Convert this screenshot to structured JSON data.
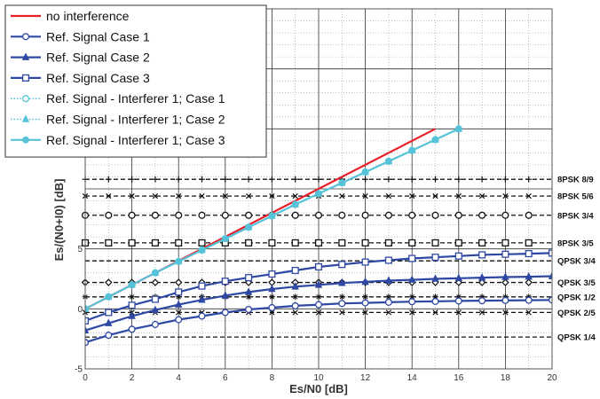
{
  "chart_data": {
    "type": "line",
    "xlabel": "Es/N0 [dB]",
    "ylabel": "Es/(N0+I0) [dB]",
    "xlim": [
      0,
      20
    ],
    "ylim": [
      -5,
      25
    ],
    "x_ticks": [
      0,
      2,
      4,
      6,
      8,
      10,
      12,
      14,
      16,
      18,
      20
    ],
    "y_ticks": [
      -5,
      0,
      5
    ],
    "grid": "major-solid, minor-dotted",
    "legend_position": "top-left",
    "series": [
      {
        "name": "no interference",
        "color": "#e8202a",
        "line": "solid",
        "marker": "none",
        "points": [
          [
            0,
            0
          ],
          [
            15,
            15
          ]
        ]
      },
      {
        "name": "Ref. Signal Case 1",
        "color": "#2e48a3",
        "line": "solid",
        "marker": "circle",
        "points": [
          [
            0,
            -2.8
          ],
          [
            1,
            -2.2
          ],
          [
            2,
            -1.7
          ],
          [
            3,
            -1.3
          ],
          [
            4,
            -0.9
          ],
          [
            5,
            -0.6
          ],
          [
            6,
            -0.3
          ],
          [
            7,
            -0.05
          ],
          [
            8,
            0.1
          ],
          [
            9,
            0.25
          ],
          [
            10,
            0.35
          ],
          [
            11,
            0.45
          ],
          [
            12,
            0.5
          ],
          [
            13,
            0.55
          ],
          [
            14,
            0.6
          ],
          [
            15,
            0.62
          ],
          [
            16,
            0.66
          ],
          [
            17,
            0.68
          ],
          [
            18,
            0.7
          ],
          [
            19,
            0.72
          ],
          [
            20,
            0.74
          ]
        ]
      },
      {
        "name": "Ref. Signal Case 2",
        "color": "#2e48a3",
        "line": "solid",
        "marker": "triangle",
        "points": [
          [
            0,
            -1.8
          ],
          [
            1,
            -1.2
          ],
          [
            2,
            -0.6
          ],
          [
            3,
            -0.1
          ],
          [
            4,
            0.35
          ],
          [
            5,
            0.75
          ],
          [
            6,
            1.1
          ],
          [
            7,
            1.4
          ],
          [
            8,
            1.65
          ],
          [
            9,
            1.85
          ],
          [
            10,
            2.0
          ],
          [
            11,
            2.15
          ],
          [
            12,
            2.25
          ],
          [
            13,
            2.35
          ],
          [
            14,
            2.42
          ],
          [
            15,
            2.5
          ],
          [
            16,
            2.55
          ],
          [
            17,
            2.6
          ],
          [
            18,
            2.65
          ],
          [
            19,
            2.68
          ],
          [
            20,
            2.72
          ]
        ]
      },
      {
        "name": "Ref. Signal Case 3",
        "color": "#2e48a3",
        "line": "solid",
        "marker": "square",
        "points": [
          [
            0,
            -1.0
          ],
          [
            1,
            -0.3
          ],
          [
            2,
            0.3
          ],
          [
            3,
            0.8
          ],
          [
            4,
            1.4
          ],
          [
            5,
            1.9
          ],
          [
            6,
            2.3
          ],
          [
            7,
            2.6
          ],
          [
            8,
            2.9
          ],
          [
            9,
            3.2
          ],
          [
            10,
            3.5
          ],
          [
            11,
            3.7
          ],
          [
            12,
            3.9
          ],
          [
            13,
            4.05
          ],
          [
            14,
            4.2
          ],
          [
            15,
            4.3
          ],
          [
            16,
            4.4
          ],
          [
            17,
            4.5
          ],
          [
            18,
            4.55
          ],
          [
            19,
            4.6
          ],
          [
            20,
            4.65
          ]
        ]
      },
      {
        "name": "Ref. Signal - Interferer 1; Case 1",
        "color": "#57c3d8",
        "line": "dotted",
        "marker": "circle",
        "points": [
          [
            0,
            0
          ],
          [
            1,
            1
          ],
          [
            2,
            2
          ],
          [
            3,
            3
          ],
          [
            4,
            3.95
          ],
          [
            5,
            4.9
          ],
          [
            6,
            5.85
          ],
          [
            7,
            6.8
          ],
          [
            8,
            7.75
          ],
          [
            9,
            8.7
          ],
          [
            10,
            9.6
          ],
          [
            11,
            10.5
          ],
          [
            12,
            11.4
          ],
          [
            13,
            12.3
          ],
          [
            14,
            13.2
          ],
          [
            15,
            14.1
          ],
          [
            16,
            15.0
          ]
        ]
      },
      {
        "name": "Ref. Signal - Interferer 1; Case 2",
        "color": "#57c3d8",
        "line": "dotted",
        "marker": "triangle",
        "points": [
          [
            0,
            0
          ],
          [
            1,
            1
          ],
          [
            2,
            2
          ],
          [
            3,
            3
          ],
          [
            4,
            3.95
          ],
          [
            5,
            4.9
          ],
          [
            6,
            5.85
          ],
          [
            7,
            6.8
          ],
          [
            8,
            7.75
          ],
          [
            9,
            8.7
          ],
          [
            10,
            9.6
          ],
          [
            11,
            10.5
          ],
          [
            12,
            11.4
          ],
          [
            13,
            12.3
          ],
          [
            14,
            13.2
          ],
          [
            15,
            14.1
          ],
          [
            16,
            15.0
          ]
        ]
      },
      {
        "name": "Ref. Signal - Interferer 1; Case 3",
        "color": "#57c3d8",
        "line": "solid",
        "marker": "circle-filled",
        "points": [
          [
            0,
            0
          ],
          [
            1,
            1
          ],
          [
            2,
            2
          ],
          [
            3,
            3
          ],
          [
            4,
            3.95
          ],
          [
            5,
            4.9
          ],
          [
            6,
            5.85
          ],
          [
            7,
            6.8
          ],
          [
            8,
            7.75
          ],
          [
            9,
            8.7
          ],
          [
            10,
            9.6
          ],
          [
            11,
            10.5
          ],
          [
            12,
            11.4
          ],
          [
            13,
            12.3
          ],
          [
            14,
            13.2
          ],
          [
            15,
            14.1
          ],
          [
            16,
            15.0
          ]
        ]
      }
    ],
    "thresholds": [
      {
        "label": "8PSK 8/9",
        "y": 10.8,
        "marker": "plus"
      },
      {
        "label": "8PSK 5/6",
        "y": 9.4,
        "marker": "x"
      },
      {
        "label": "8PSK 3/4",
        "y": 7.8,
        "marker": "circle"
      },
      {
        "label": "8PSK 3/5",
        "y": 5.5,
        "marker": "square"
      },
      {
        "label": "QPSK 3/4",
        "y": 4.0,
        "marker": "none"
      },
      {
        "label": "QPSK 3/5",
        "y": 2.2,
        "marker": "diamond"
      },
      {
        "label": "QPSK 1/2",
        "y": 1.0,
        "marker": "asterisk"
      },
      {
        "label": "QPSK 2/5",
        "y": -0.3,
        "marker": "x"
      },
      {
        "label": "QPSK 1/4",
        "y": -2.35,
        "marker": "none"
      }
    ]
  }
}
